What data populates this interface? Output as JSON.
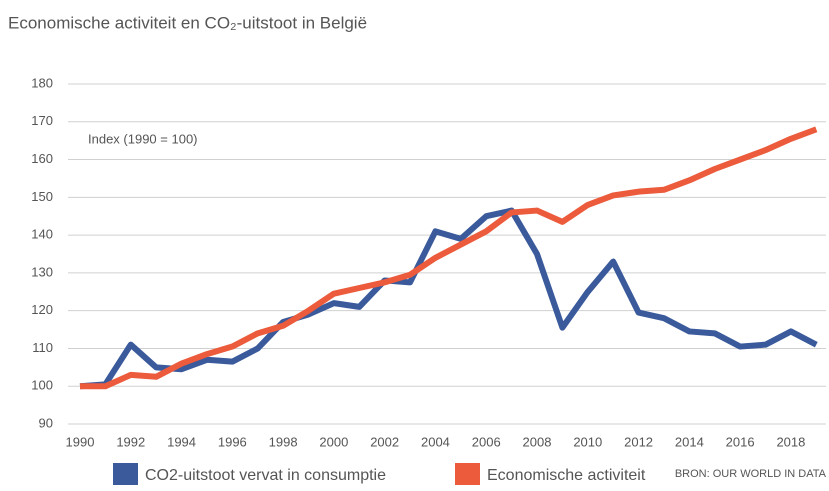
{
  "chart_data": {
    "type": "line",
    "title": "Economische activiteit en CO₂-uitstoot in België",
    "annotation": "Index (1990 = 100)",
    "source": "BRON: OUR WORLD IN DATA",
    "x": [
      1990,
      1991,
      1992,
      1993,
      1994,
      1995,
      1996,
      1997,
      1998,
      1999,
      2000,
      2001,
      2002,
      2003,
      2004,
      2005,
      2006,
      2007,
      2008,
      2009,
      2010,
      2011,
      2012,
      2013,
      2014,
      2015,
      2016,
      2017,
      2018,
      2019
    ],
    "series": [
      {
        "name": "CO2-uitstoot vervat in consumptie",
        "color": "#3a5a9c",
        "values": [
          100,
          100.5,
          111,
          105,
          104.5,
          107,
          106.5,
          110,
          117,
          119,
          122,
          121,
          128,
          127.5,
          141,
          139,
          145,
          146.5,
          135,
          115.5,
          125,
          133,
          119.5,
          118,
          114.5,
          114,
          110.5,
          111,
          114.5,
          111
        ]
      },
      {
        "name": "Economische activiteit",
        "color": "#eb5b3c",
        "values": [
          100,
          100,
          103,
          102.5,
          106,
          108.5,
          110.5,
          114,
          116,
          120,
          124.5,
          126,
          127.5,
          129.5,
          134,
          137.5,
          141,
          146,
          146.5,
          143.5,
          148,
          150.5,
          151.5,
          152,
          154.5,
          157.5,
          160,
          162.5,
          165.5,
          168
        ]
      }
    ],
    "xlim": [
      1989.5,
      2019.5
    ],
    "xticks": [
      1990,
      1992,
      1994,
      1996,
      1998,
      2000,
      2002,
      2004,
      2006,
      2008,
      2010,
      2012,
      2014,
      2016,
      2018
    ],
    "ylim": [
      90,
      180
    ],
    "yticks": [
      90,
      100,
      110,
      120,
      130,
      140,
      150,
      160,
      170,
      180
    ],
    "grid": true
  }
}
